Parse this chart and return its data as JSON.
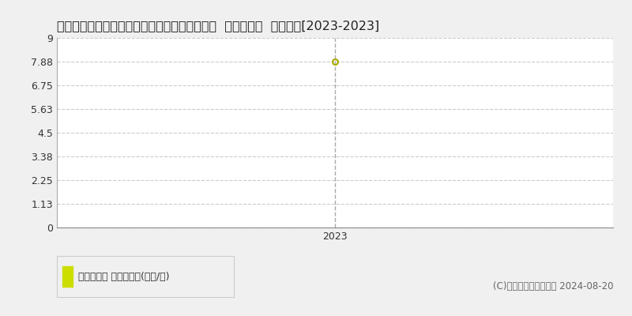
{
  "title": "愛知県北設楽郡設楽町田口字ヒロカイツ５番外  基準地価格  地価推移[2023-2023]",
  "x_data": [
    2023
  ],
  "y_data": [
    7.88
  ],
  "yticks": [
    0,
    1.13,
    2.25,
    3.38,
    4.5,
    5.63,
    6.75,
    7.88,
    9
  ],
  "ylim": [
    0,
    9
  ],
  "xlim": [
    2022.3,
    2023.7
  ],
  "marker_color": "#ccdd00",
  "marker_edge_color": "#aaaa00",
  "grid_color": "#cccccc",
  "bg_color": "#f0f0f0",
  "plot_bg_color": "#ffffff",
  "dashed_vline_color": "#aaaaaa",
  "legend_label": "基準地価格 平均坪単価(万円/坪)",
  "copyright_text": "(C)土地価格ドットコム 2024-08-20",
  "title_fontsize": 11.5,
  "tick_fontsize": 9,
  "legend_fontsize": 9,
  "copyright_fontsize": 8.5
}
